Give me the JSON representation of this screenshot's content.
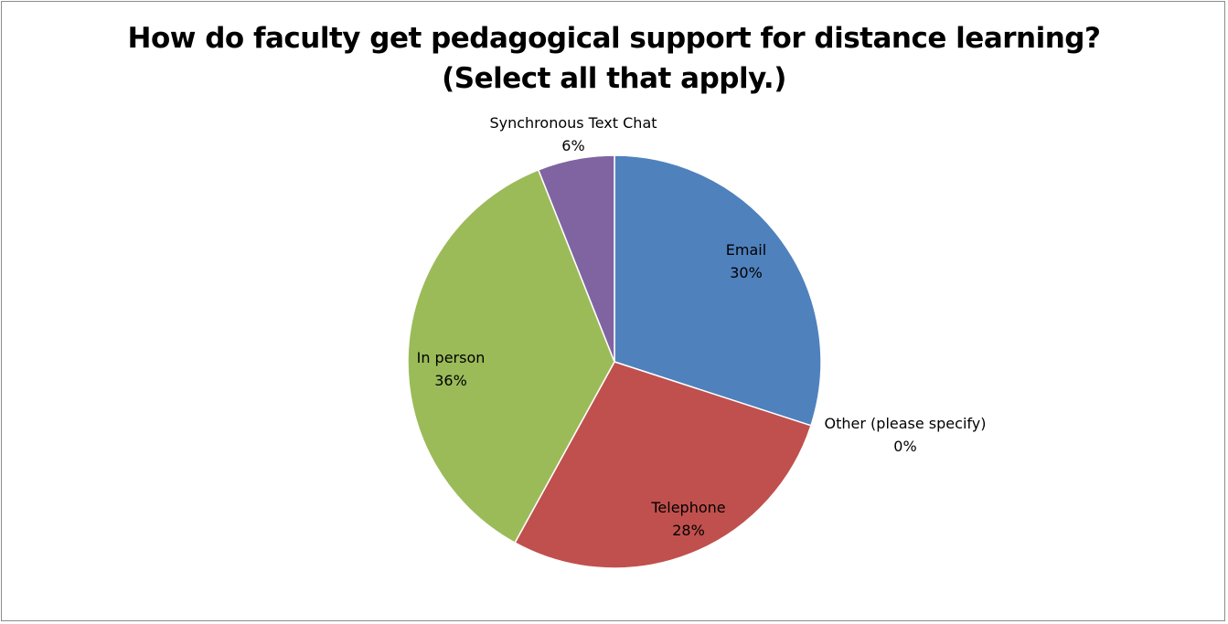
{
  "chart_data": {
    "type": "pie",
    "title_lines": [
      "How do faculty get pedagogical support for distance learning?",
      "(Select all that apply.)"
    ],
    "slices": [
      {
        "name": "Email",
        "value": 30,
        "label": "30%",
        "color": "#4F81BD"
      },
      {
        "name": "Other (please specify)",
        "value": 0,
        "label": "0%",
        "color": "#F79646"
      },
      {
        "name": "Telephone",
        "value": 28,
        "label": "28%",
        "color": "#C0504D"
      },
      {
        "name": "In person",
        "value": 36,
        "label": "36%",
        "color": "#9BBB59"
      },
      {
        "name": "Synchronous Text Chat",
        "value": 6,
        "label": "6%",
        "color": "#8064A2"
      }
    ],
    "start_angle": "12 o'clock",
    "direction": "clockwise",
    "legend": "none",
    "label_style": "category name and percentage"
  }
}
